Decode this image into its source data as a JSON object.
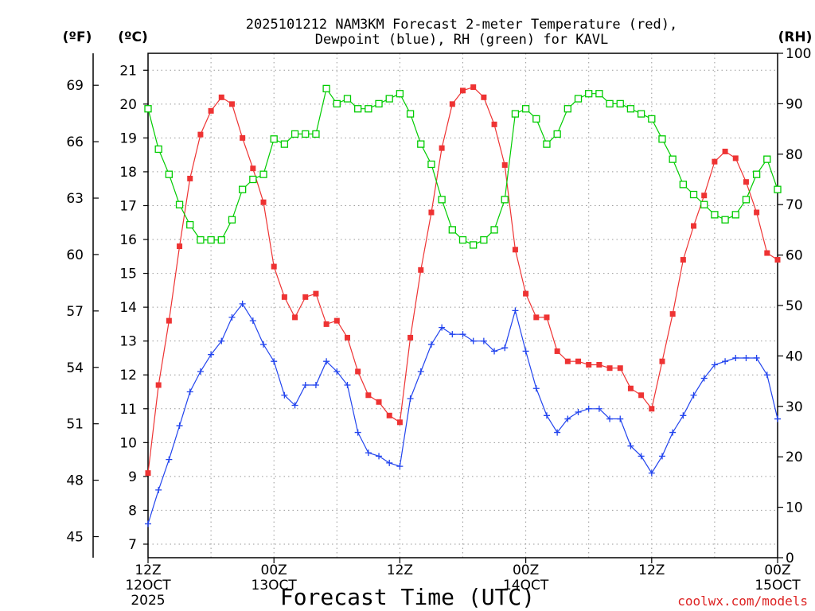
{
  "page": {
    "title_line1": "2025101212 NAM3KM Forecast 2-meter Temperature (red),",
    "title_line2": "Dewpoint (blue), RH (green) for KAVL",
    "credit": "coolwx.com/models",
    "unit_f": "(ºF)",
    "unit_c": "(ºC)",
    "unit_rh": "(RH)"
  },
  "chart_data": {
    "type": "line",
    "title": "2025101212 NAM3KM Forecast 2-meter Temperature (red), Dewpoint (blue), RH (green) for KAVL",
    "xlabel": "Forecast Time (UTC)",
    "ylabel_left_outer": "(ºF)",
    "ylabel_left_inner": "(ºC)",
    "ylabel_right": "(RH)",
    "x_unit": "forecast hour",
    "xlim": [
      0,
      60
    ],
    "ylim_c": [
      6.6,
      21.5
    ],
    "ylim_rh": [
      0,
      100
    ],
    "grid": true,
    "x_ticks": [
      {
        "hour": 0,
        "line1": "12Z",
        "line2": "12OCT",
        "line3": "2025"
      },
      {
        "hour": 12,
        "line1": "00Z",
        "line2": "13OCT",
        "line3": ""
      },
      {
        "hour": 24,
        "line1": "12Z",
        "line2": "",
        "line3": ""
      },
      {
        "hour": 36,
        "line1": "00Z",
        "line2": "14OCT",
        "line3": ""
      },
      {
        "hour": 48,
        "line1": "12Z",
        "line2": "",
        "line3": ""
      },
      {
        "hour": 60,
        "line1": "00Z",
        "line2": "15OCT",
        "line3": ""
      }
    ],
    "y_ticks_c": [
      "7",
      "8",
      "9",
      "10",
      "11",
      "12",
      "13",
      "14",
      "15",
      "16",
      "17",
      "18",
      "19",
      "20",
      "21"
    ],
    "y_ticks_f": [
      "45",
      "48",
      "51",
      "54",
      "57",
      "60",
      "63",
      "66",
      "69"
    ],
    "y_ticks_rh": [
      "0",
      "10",
      "20",
      "30",
      "40",
      "50",
      "60",
      "70",
      "80",
      "90",
      "100"
    ],
    "series": [
      {
        "name": "2-meter Temperature",
        "axis": "celsius",
        "color": "#ee3333",
        "marker": "filled-square",
        "values": [
          9.1,
          11.7,
          13.6,
          15.8,
          17.8,
          19.1,
          19.8,
          20.2,
          20.0,
          19.0,
          18.1,
          17.1,
          15.2,
          14.3,
          13.7,
          14.3,
          14.4,
          13.5,
          13.6,
          13.1,
          12.1,
          11.4,
          11.2,
          10.8,
          10.6,
          13.1,
          15.1,
          16.8,
          18.7,
          20.0,
          20.4,
          20.5,
          20.2,
          19.4,
          18.2,
          15.7,
          14.4,
          13.7,
          13.7,
          12.7,
          12.4,
          12.4,
          12.3,
          12.3,
          12.2,
          12.2,
          11.6,
          11.4,
          11.0,
          12.4,
          13.8,
          15.4,
          16.4,
          17.3,
          18.3,
          18.6,
          18.4,
          17.7,
          16.8,
          15.6,
          15.4
        ]
      },
      {
        "name": "Dewpoint",
        "axis": "celsius",
        "color": "#2244ee",
        "marker": "plus",
        "values": [
          7.6,
          8.6,
          9.5,
          10.5,
          11.5,
          12.1,
          12.6,
          13.0,
          13.7,
          14.1,
          13.6,
          12.9,
          12.4,
          11.4,
          11.1,
          11.7,
          11.7,
          12.4,
          12.1,
          11.7,
          10.3,
          9.7,
          9.6,
          9.4,
          9.3,
          11.3,
          12.1,
          12.9,
          13.4,
          13.2,
          13.2,
          13.0,
          13.0,
          12.7,
          12.8,
          13.9,
          12.7,
          11.6,
          10.8,
          10.3,
          10.7,
          10.9,
          11.0,
          11.0,
          10.7,
          10.7,
          9.9,
          9.6,
          9.1,
          9.6,
          10.3,
          10.8,
          11.4,
          11.9,
          12.3,
          12.4,
          12.5,
          12.5,
          12.5,
          12.0,
          10.7
        ]
      },
      {
        "name": "RH",
        "axis": "rh",
        "color": "#00cc00",
        "marker": "open-square",
        "values": [
          89,
          81,
          76,
          70,
          66,
          63,
          63,
          63,
          67,
          73,
          75,
          76,
          83,
          82,
          84,
          84,
          84,
          93,
          90,
          91,
          89,
          89,
          90,
          91,
          92,
          88,
          82,
          78,
          71,
          65,
          63,
          62,
          63,
          65,
          71,
          88,
          89,
          87,
          82,
          84,
          89,
          91,
          92,
          92,
          90,
          90,
          89,
          88,
          87,
          83,
          79,
          74,
          72,
          70,
          68,
          67,
          68,
          71,
          76,
          79,
          73
        ]
      }
    ]
  }
}
